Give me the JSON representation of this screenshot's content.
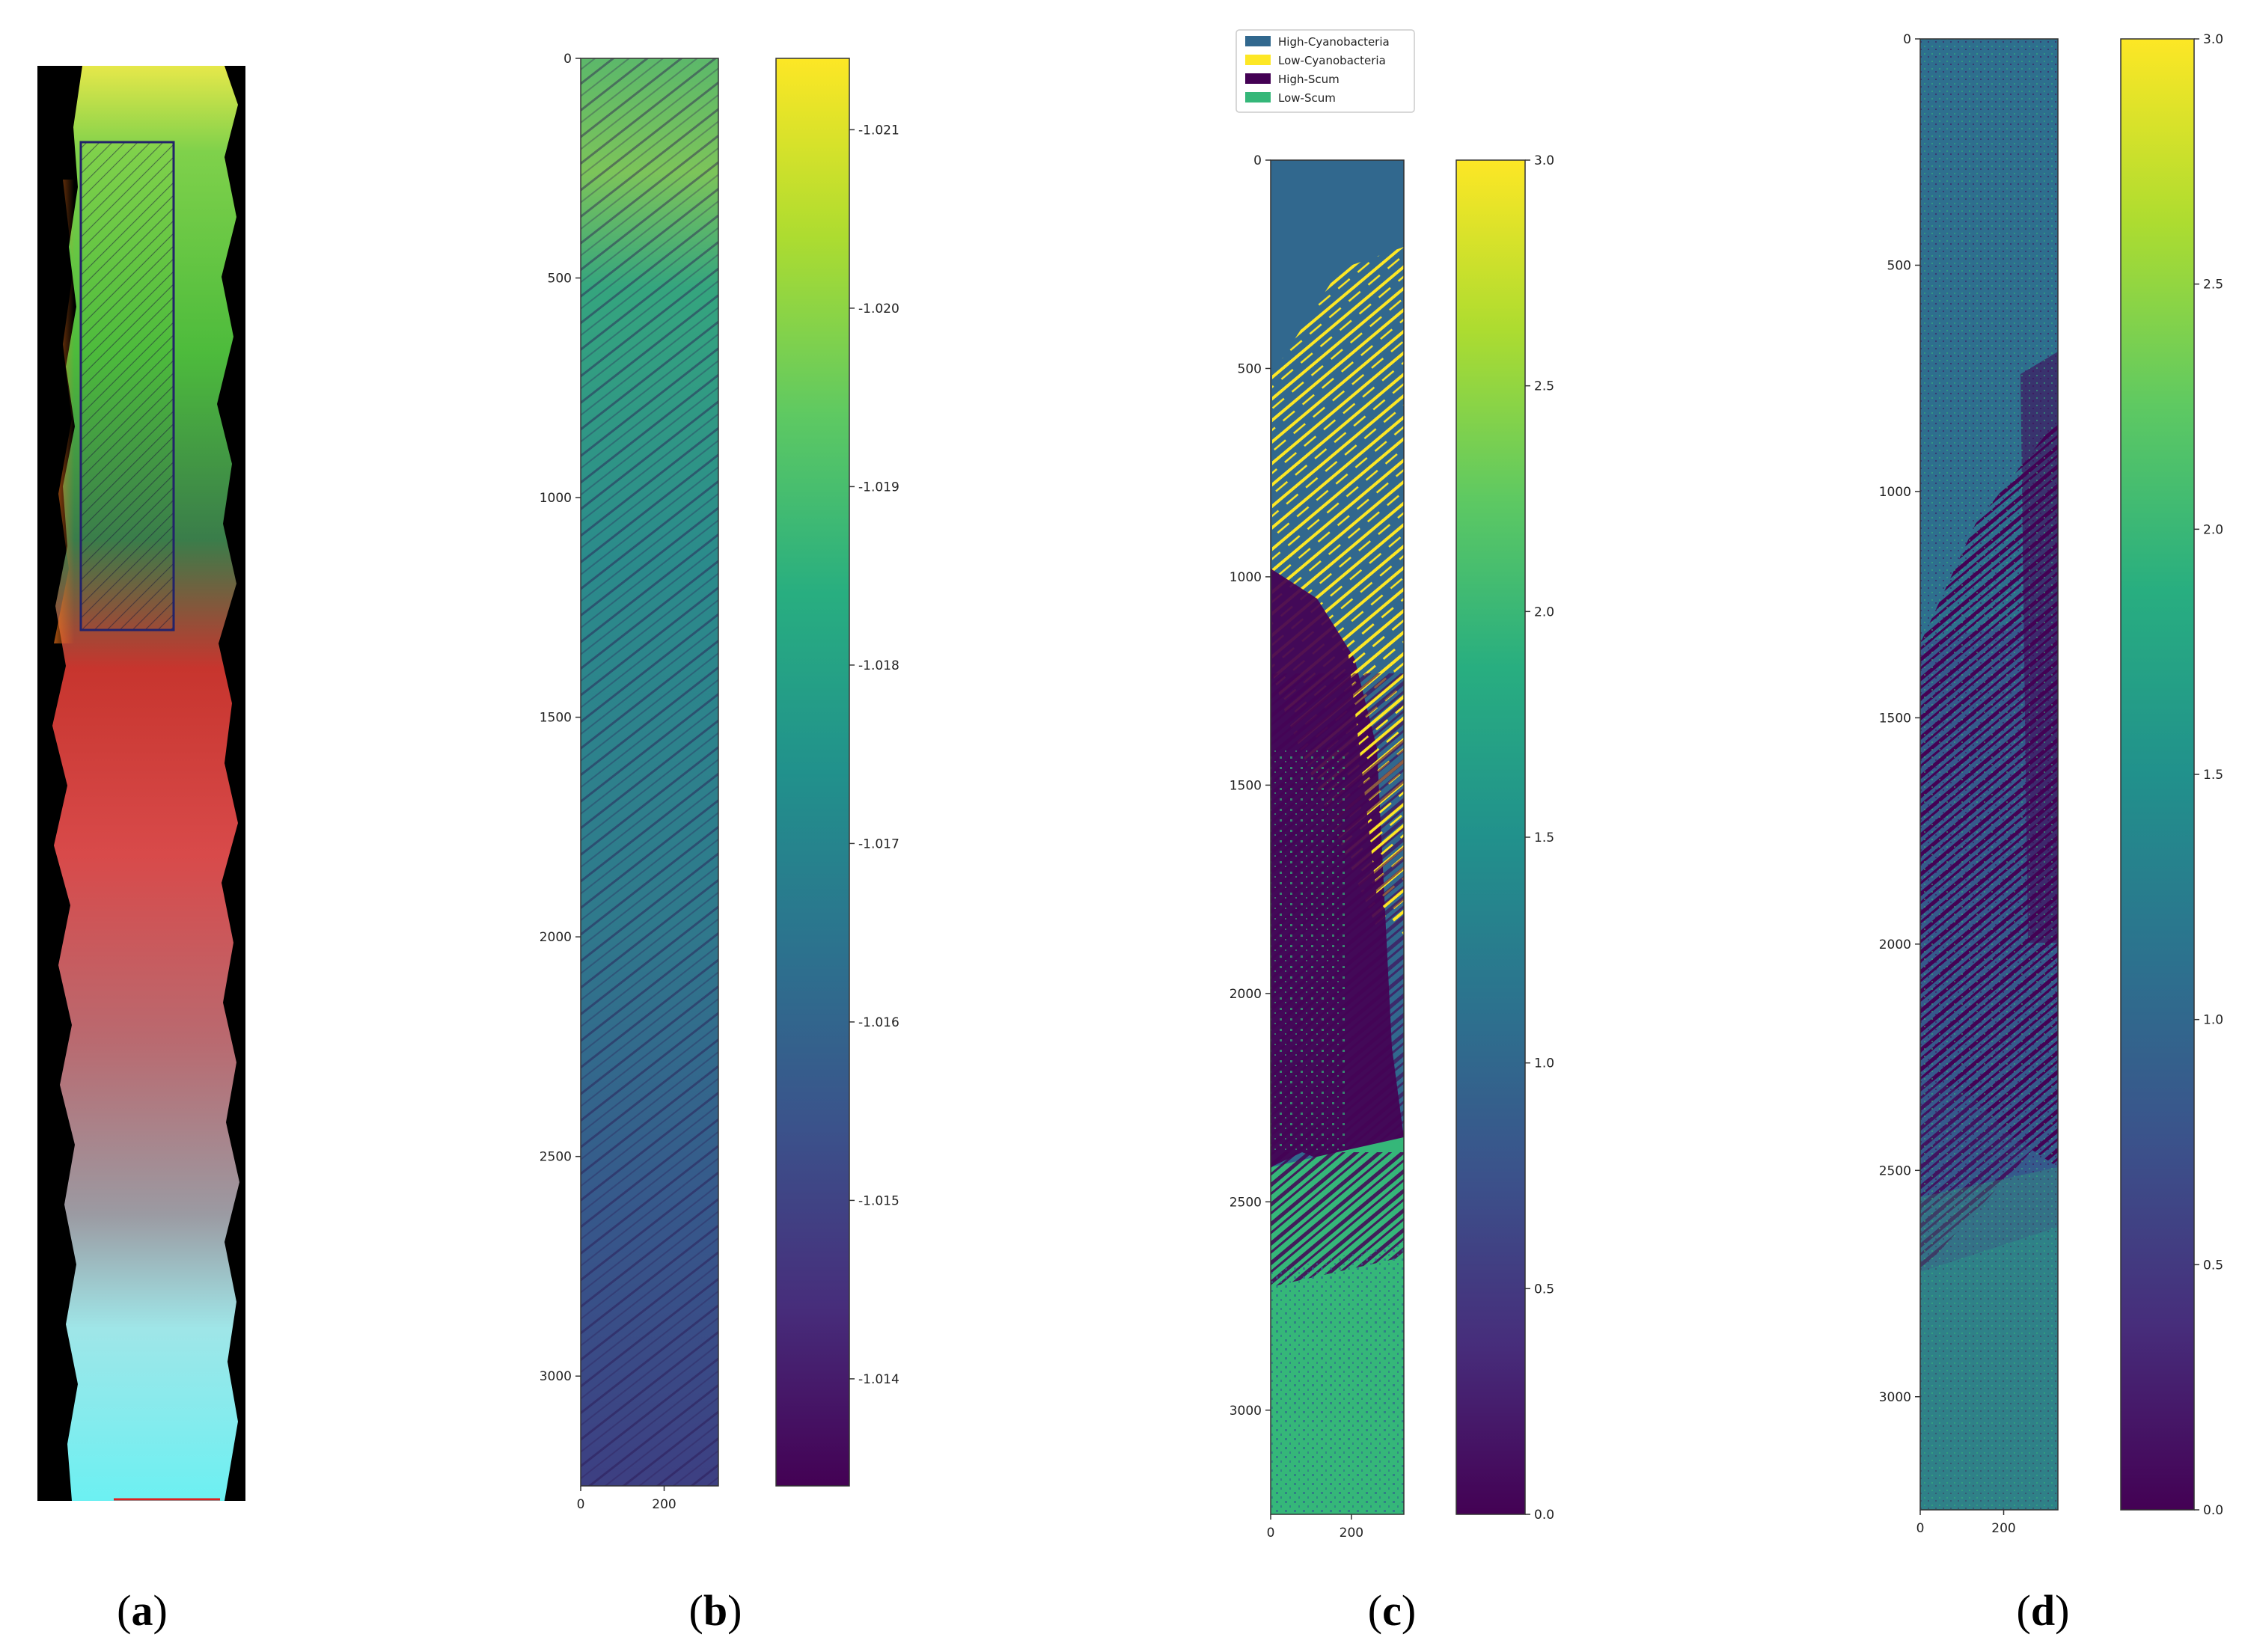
{
  "chart_data": [
    {
      "panel": "a",
      "type": "image",
      "label_open": "(",
      "label_letter": "a",
      "label_close": ")"
    },
    {
      "panel": "b",
      "type": "heatmap",
      "label_open": "(",
      "label_letter": "b",
      "label_close": ")",
      "colormap": "viridis",
      "y_ticks": [
        "0",
        "500",
        "1000",
        "1500",
        "2000",
        "2500",
        "3000"
      ],
      "y_tick_values": [
        0,
        500,
        1000,
        1500,
        2000,
        2500,
        3000
      ],
      "x_ticks": [
        "0",
        "200"
      ],
      "x_tick_values": [
        0,
        200
      ],
      "x_range": [
        0,
        330
      ],
      "y_range": [
        0,
        3250
      ],
      "colorbar_ticks": [
        "-1.021",
        "-1.020",
        "-1.019",
        "-1.018",
        "-1.017",
        "-1.016",
        "-1.015",
        "-1.014"
      ],
      "colorbar_values": [
        -1.021,
        -1.02,
        -1.019,
        -1.018,
        -1.017,
        -1.016,
        -1.015,
        -1.014
      ],
      "colorbar_range": [
        -1.0134,
        -1.0214
      ]
    },
    {
      "panel": "c",
      "type": "heatmap",
      "label_open": "(",
      "label_letter": "c",
      "label_close": ")",
      "colormap": "viridis",
      "legend": [
        {
          "label": "High-Cyanobacteria",
          "color": "#31688e"
        },
        {
          "label": "Low-Cyanobacteria",
          "color": "#fde725"
        },
        {
          "label": "High-Scum",
          "color": "#440154"
        },
        {
          "label": "Low-Scum",
          "color": "#35b779"
        }
      ],
      "legend_placement": "top-left",
      "y_ticks": [
        "0",
        "500",
        "1000",
        "1500",
        "2000",
        "2500",
        "3000"
      ],
      "y_tick_values": [
        0,
        500,
        1000,
        1500,
        2000,
        2500,
        3000
      ],
      "x_ticks": [
        "0",
        "200"
      ],
      "x_tick_values": [
        0,
        200
      ],
      "x_range": [
        0,
        330
      ],
      "y_range": [
        0,
        3250
      ],
      "colorbar_ticks": [
        "3.0",
        "2.5",
        "2.0",
        "1.5",
        "1.0",
        "0.5",
        "0.0"
      ],
      "colorbar_values": [
        3.0,
        2.5,
        2.0,
        1.5,
        1.0,
        0.5,
        0.0
      ],
      "colorbar_range": [
        0,
        3
      ]
    },
    {
      "panel": "d",
      "type": "heatmap",
      "label_open": "(",
      "label_letter": "d",
      "label_close": ")",
      "colormap": "viridis",
      "y_ticks": [
        "0",
        "500",
        "1000",
        "1500",
        "2000",
        "2500",
        "3000"
      ],
      "y_tick_values": [
        0,
        500,
        1000,
        1500,
        2000,
        2500,
        3000
      ],
      "x_ticks": [
        "0",
        "200"
      ],
      "x_tick_values": [
        0,
        200
      ],
      "x_range": [
        0,
        330
      ],
      "y_range": [
        0,
        3250
      ],
      "colorbar_ticks": [
        "3.0",
        "2.5",
        "2.0",
        "1.5",
        "1.0",
        "0.5",
        "0.0"
      ],
      "colorbar_values": [
        3.0,
        2.5,
        2.0,
        1.5,
        1.0,
        0.5,
        0.0
      ],
      "colorbar_range": [
        0,
        3
      ]
    }
  ]
}
